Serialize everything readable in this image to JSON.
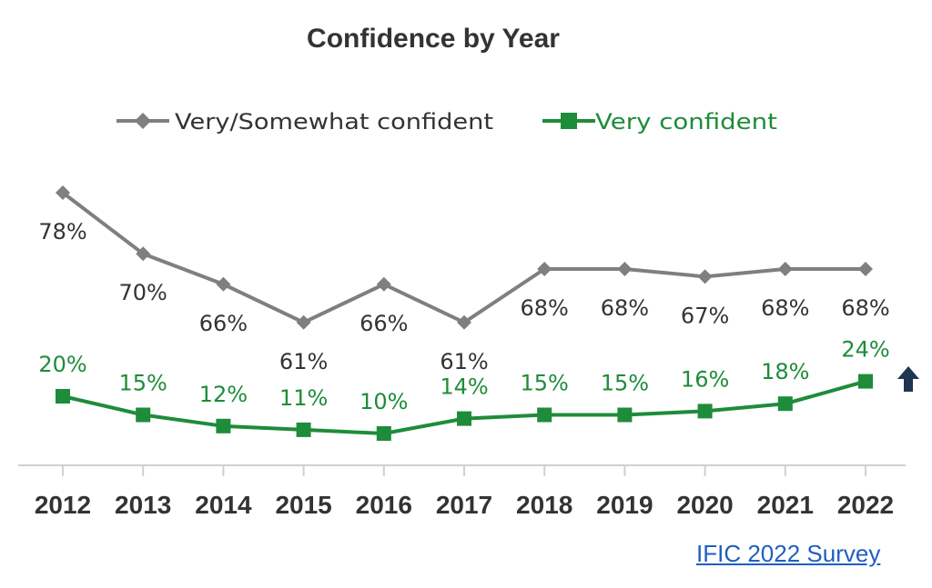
{
  "chart_data": {
    "type": "line",
    "title": "Confidence by Year",
    "xlabel": "",
    "ylabel": "",
    "categories": [
      "2012",
      "2013",
      "2014",
      "2015",
      "2016",
      "2017",
      "2018",
      "2019",
      "2020",
      "2021",
      "2022"
    ],
    "series": [
      {
        "name": "Very/Somewhat confident",
        "values": [
          78,
          70,
          66,
          61,
          66,
          61,
          68,
          68,
          67,
          68,
          68
        ],
        "labels": [
          "78%",
          "70%",
          "66%",
          "61%",
          "66%",
          "61%",
          "68%",
          "68%",
          "67%",
          "68%",
          "68%"
        ],
        "color": "#7f7f7f",
        "label_color": "#333333",
        "marker": "diamond"
      },
      {
        "name": "Very confident",
        "values": [
          20,
          15,
          12,
          11,
          10,
          14,
          15,
          15,
          16,
          18,
          24
        ],
        "labels": [
          "20%",
          "15%",
          "12%",
          "11%",
          "10%",
          "14%",
          "15%",
          "15%",
          "16%",
          "18%",
          "24%"
        ],
        "color": "#1e8c3a",
        "label_color": "#1e8c3a",
        "marker": "square"
      }
    ],
    "legend_position": "top",
    "grid": false,
    "annotations": [
      {
        "type": "up-arrow",
        "category": "2022",
        "series": "Very confident",
        "color": "#1f3552"
      }
    ]
  },
  "source": {
    "label": "IFIC 2022 Survey"
  }
}
